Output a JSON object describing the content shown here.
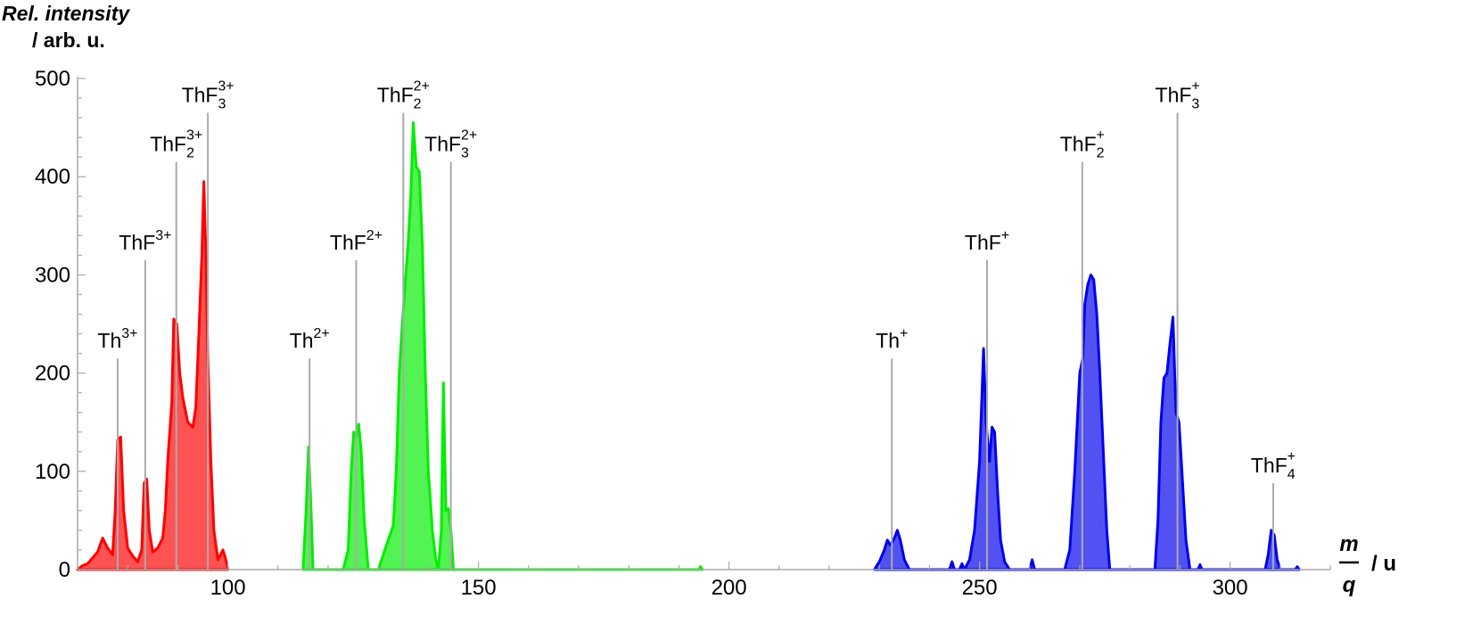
{
  "chart_data": {
    "type": "area",
    "ylabel": [
      "Rel. intensity",
      "/ arb. u."
    ],
    "xlabel": {
      "numerator": "m",
      "denominator": "q",
      "unit": "/ u"
    },
    "xlim": [
      70,
      320
    ],
    "ylim": [
      0,
      500
    ],
    "xticks": [
      100,
      150,
      200,
      250,
      300
    ],
    "yticks": [
      0,
      100,
      200,
      300,
      400,
      500
    ],
    "grid": false,
    "colors": {
      "triple": "#ff0000",
      "double": "#00ee00",
      "single": "#0000ee",
      "marker": "#aaaaaa"
    },
    "series": [
      {
        "group": "triple",
        "color": "#ff0000",
        "points": [
          [
            70,
            0
          ],
          [
            71,
            4
          ],
          [
            72,
            6
          ],
          [
            73,
            12
          ],
          [
            74,
            18
          ],
          [
            75,
            32
          ],
          [
            76,
            22
          ],
          [
            77,
            15
          ],
          [
            77.5,
            60
          ],
          [
            78,
            132
          ],
          [
            78.6,
            135
          ],
          [
            79.2,
            60
          ],
          [
            80,
            22
          ],
          [
            81,
            14
          ],
          [
            82,
            8
          ],
          [
            82.8,
            20
          ],
          [
            83.3,
            88
          ],
          [
            83.8,
            92
          ],
          [
            84.3,
            40
          ],
          [
            85,
            18
          ],
          [
            86,
            22
          ],
          [
            87,
            32
          ],
          [
            87.5,
            60
          ],
          [
            88,
            112
          ],
          [
            88.8,
            170
          ],
          [
            89.2,
            255
          ],
          [
            89.8,
            250
          ],
          [
            90.4,
            200
          ],
          [
            91,
            175
          ],
          [
            92,
            150
          ],
          [
            93,
            145
          ],
          [
            93.6,
            165
          ],
          [
            94.2,
            240
          ],
          [
            94.8,
            320
          ],
          [
            95.2,
            395
          ],
          [
            95.6,
            320
          ],
          [
            96,
            215
          ],
          [
            96.6,
            110
          ],
          [
            97.2,
            40
          ],
          [
            98,
            10
          ],
          [
            99,
            20
          ],
          [
            99.5,
            12
          ],
          [
            100,
            0
          ]
        ]
      },
      {
        "group": "double",
        "color": "#00ee00",
        "points": [
          [
            115,
            0
          ],
          [
            115.6,
            60
          ],
          [
            116.1,
            125
          ],
          [
            116.6,
            60
          ],
          [
            117,
            0
          ],
          [
            123,
            0
          ],
          [
            124,
            20
          ],
          [
            124.6,
            100
          ],
          [
            125.1,
            140
          ],
          [
            125.6,
            135
          ],
          [
            126.1,
            148
          ],
          [
            126.6,
            120
          ],
          [
            127.2,
            50
          ],
          [
            128,
            0
          ],
          [
            130,
            0
          ],
          [
            131,
            15
          ],
          [
            132,
            30
          ],
          [
            133,
            45
          ],
          [
            133.6,
            100
          ],
          [
            134.2,
            200
          ],
          [
            134.8,
            250
          ],
          [
            135.5,
            300
          ],
          [
            136,
            335
          ],
          [
            136.5,
            380
          ],
          [
            137,
            455
          ],
          [
            137.6,
            410
          ],
          [
            138.2,
            405
          ],
          [
            138.8,
            330
          ],
          [
            139.4,
            200
          ],
          [
            140,
            100
          ],
          [
            140.8,
            40
          ],
          [
            141.5,
            10
          ],
          [
            142,
            0
          ],
          [
            142.6,
            40
          ],
          [
            143,
            190
          ],
          [
            143.5,
            60
          ],
          [
            144,
            62
          ],
          [
            144.5,
            40
          ],
          [
            145,
            0
          ],
          [
            194,
            0
          ],
          [
            194.3,
            3
          ],
          [
            194.7,
            0
          ]
        ]
      },
      {
        "group": "single",
        "color": "#0000ee",
        "points": [
          [
            229,
            0
          ],
          [
            230,
            8
          ],
          [
            231,
            20
          ],
          [
            231.6,
            30
          ],
          [
            232.2,
            25
          ],
          [
            233,
            32
          ],
          [
            233.6,
            40
          ],
          [
            234.2,
            30
          ],
          [
            235,
            10
          ],
          [
            236,
            0
          ],
          [
            244,
            0
          ],
          [
            244.5,
            8
          ],
          [
            245,
            0
          ],
          [
            246,
            0
          ],
          [
            246.5,
            6
          ],
          [
            247,
            0
          ],
          [
            248,
            10
          ],
          [
            249,
            40
          ],
          [
            250,
            110
          ],
          [
            250.5,
            180
          ],
          [
            250.8,
            225
          ],
          [
            251.3,
            150
          ],
          [
            252,
            110
          ],
          [
            252.5,
            145
          ],
          [
            253,
            140
          ],
          [
            253.6,
            80
          ],
          [
            254.2,
            30
          ],
          [
            255,
            8
          ],
          [
            256,
            0
          ],
          [
            260,
            0
          ],
          [
            260.5,
            10
          ],
          [
            261,
            0
          ],
          [
            267,
            0
          ],
          [
            268,
            20
          ],
          [
            269,
            100
          ],
          [
            270,
            200
          ],
          [
            270.6,
            215
          ],
          [
            271,
            270
          ],
          [
            271.6,
            290
          ],
          [
            272.2,
            300
          ],
          [
            272.8,
            295
          ],
          [
            273.4,
            260
          ],
          [
            274,
            200
          ],
          [
            274.7,
            120
          ],
          [
            275.4,
            40
          ],
          [
            276,
            0
          ],
          [
            285,
            0
          ],
          [
            285.6,
            50
          ],
          [
            286.2,
            150
          ],
          [
            286.8,
            195
          ],
          [
            287.4,
            200
          ],
          [
            288,
            230
          ],
          [
            288.6,
            257
          ],
          [
            289.2,
            160
          ],
          [
            289.8,
            150
          ],
          [
            290.4,
            100
          ],
          [
            291.2,
            30
          ],
          [
            292,
            0
          ],
          [
            293.6,
            0
          ],
          [
            294,
            5
          ],
          [
            294.4,
            0
          ],
          [
            307,
            0
          ],
          [
            307.6,
            15
          ],
          [
            308.2,
            40
          ],
          [
            308.8,
            35
          ],
          [
            309.4,
            10
          ],
          [
            310,
            0
          ],
          [
            313,
            0
          ],
          [
            313.4,
            3
          ],
          [
            313.8,
            0
          ]
        ]
      }
    ],
    "peak_labels": [
      {
        "x": 78,
        "ion": "Th",
        "sub": "",
        "sup": "3+",
        "top": 215
      },
      {
        "x": 83.5,
        "ion": "ThF",
        "sub": "",
        "sup": "3+",
        "top": 315
      },
      {
        "x": 89.7,
        "ion": "ThF",
        "sub": "2",
        "sup": "3+",
        "top": 415
      },
      {
        "x": 96,
        "ion": "ThF",
        "sub": "3",
        "sup": "3+",
        "top": 465
      },
      {
        "x": 116.3,
        "ion": "Th",
        "sub": "",
        "sup": "2+",
        "top": 215
      },
      {
        "x": 125.6,
        "ion": "ThF",
        "sub": "",
        "sup": "2+",
        "top": 315
      },
      {
        "x": 135,
        "ion": "ThF",
        "sub": "2",
        "sup": "2+",
        "top": 465
      },
      {
        "x": 144.5,
        "ion": "ThF",
        "sub": "3",
        "sup": "2+",
        "top": 415
      },
      {
        "x": 232.5,
        "ion": "Th",
        "sub": "",
        "sup": "+",
        "top": 215
      },
      {
        "x": 251.5,
        "ion": "ThF",
        "sub": "",
        "sup": "+",
        "top": 315
      },
      {
        "x": 270.5,
        "ion": "ThF",
        "sub": "2",
        "sup": "+",
        "top": 415
      },
      {
        "x": 289.5,
        "ion": "ThF",
        "sub": "3",
        "sup": "+",
        "top": 465
      },
      {
        "x": 308.6,
        "ion": "ThF",
        "sub": "4",
        "sup": "+",
        "top": 88
      }
    ]
  }
}
